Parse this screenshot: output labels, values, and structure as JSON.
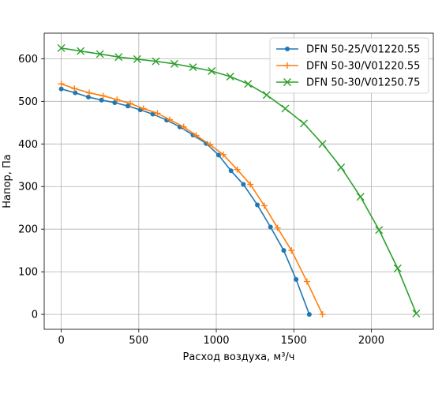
{
  "chart_data": {
    "type": "line",
    "title": "",
    "xlabel": "Расход воздуха, м³/ч",
    "ylabel": "Напор, Па",
    "xlim": [
      -110,
      2400
    ],
    "ylim": [
      -35,
      660
    ],
    "xticks": [
      0,
      500,
      1000,
      1500,
      2000
    ],
    "yticks": [
      0,
      100,
      200,
      300,
      400,
      500,
      600
    ],
    "grid": true,
    "legend_position": "top-right",
    "series": [
      {
        "name": "DFN 50-25/V01220.55",
        "color": "#1f77b4",
        "marker": "dot",
        "x": [
          0,
          90,
          175,
          260,
          345,
          430,
          510,
          590,
          680,
          765,
          850,
          935,
          1015,
          1095,
          1175,
          1265,
          1350,
          1435,
          1515,
          1600
        ],
        "y": [
          529,
          520,
          510,
          503,
          497,
          489,
          480,
          470,
          456,
          440,
          421,
          401,
          374,
          337,
          305,
          257,
          205,
          150,
          82,
          0
        ]
      },
      {
        "name": "DFN 50-30/V01220.55",
        "color": "#ff7f0e",
        "marker": "plus",
        "x": [
          0,
          85,
          180,
          270,
          360,
          445,
          530,
          620,
          700,
          790,
          870,
          960,
          1045,
          1135,
          1220,
          1310,
          1395,
          1485,
          1585,
          1685
        ],
        "y": [
          541,
          530,
          520,
          513,
          504,
          495,
          483,
          472,
          457,
          440,
          420,
          398,
          375,
          340,
          305,
          255,
          203,
          150,
          77,
          0
        ]
      },
      {
        "name": "DFN 50-30/V01250.75",
        "color": "#2ca02c",
        "marker": "x",
        "x": [
          0,
          125,
          250,
          370,
          490,
          610,
          730,
          850,
          970,
          1090,
          1205,
          1325,
          1445,
          1565,
          1685,
          1805,
          1930,
          2050,
          2170,
          2290
        ],
        "y": [
          625,
          618,
          611,
          604,
          599,
          594,
          588,
          580,
          571,
          558,
          541,
          515,
          483,
          448,
          400,
          345,
          276,
          198,
          108,
          2
        ]
      }
    ]
  }
}
